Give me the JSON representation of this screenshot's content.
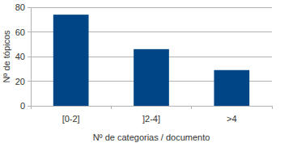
{
  "chart_data": {
    "type": "bar",
    "x_label": "Nº de categorias / documento",
    "y_label": "Nº de tópicos",
    "categories": [
      "[0-2]",
      "]2-4]",
      ">4"
    ],
    "values": [
      74,
      46,
      29
    ],
    "color": "#004586",
    "ylim": [
      0,
      80
    ],
    "yticks": [
      0,
      20,
      40,
      60,
      80
    ],
    "grid": true
  }
}
